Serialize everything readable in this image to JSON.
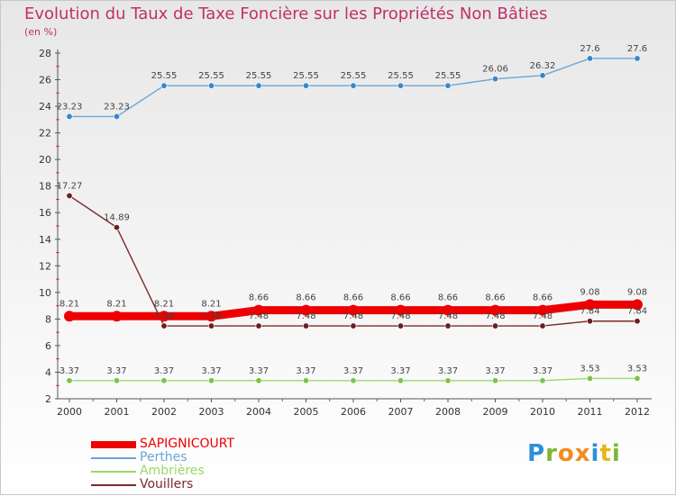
{
  "title": "Evolution du Taux de Taxe Foncière sur les Propriétés Non Bâties",
  "unit": "(en %)",
  "logo": "Proxiti",
  "chart_data": {
    "type": "line",
    "title": "Evolution du Taux de Taxe Foncière sur les Propriétés Non Bâties",
    "ylabel": "(en %)",
    "xlabel": "",
    "ylim": [
      2,
      28
    ],
    "yticks": [
      2,
      4,
      6,
      8,
      10,
      12,
      14,
      16,
      18,
      20,
      22,
      24,
      26,
      28
    ],
    "grid": false,
    "legend_position": "bottom-left",
    "x": [
      "2000",
      "2001",
      "2002",
      "2003",
      "2004",
      "2005",
      "2006",
      "2007",
      "2008",
      "2009",
      "2010",
      "2011",
      "2012"
    ],
    "series": [
      {
        "name": "Perthes",
        "color": "#6aa6d6",
        "marker": "#3a86c8",
        "values": [
          23.23,
          23.23,
          25.55,
          25.55,
          25.55,
          25.55,
          25.55,
          25.55,
          25.55,
          26.06,
          26.32,
          27.6,
          27.6
        ],
        "labels": [
          "23.23",
          "23.23",
          "25.55",
          "25.55",
          "25.55",
          "25.55",
          "25.55",
          "25.55",
          "25.55",
          "26.06",
          "26.32",
          "27.6",
          "27.6"
        ]
      },
      {
        "name": "Vouillers",
        "color": "#7a2a2a",
        "marker": "#6a1f1f",
        "values": [
          17.27,
          14.89,
          7.48,
          7.48,
          7.48,
          7.48,
          7.48,
          7.48,
          7.48,
          7.48,
          7.48,
          7.84,
          7.84
        ],
        "labels": [
          "17.27",
          "14.89",
          "7.48",
          "7.48",
          "7.48",
          "7.48",
          "7.48",
          "7.48",
          "7.48",
          "7.48",
          "7.48",
          "7.84",
          "7.84"
        ]
      },
      {
        "name": "SAPIGNICOURT",
        "color": "#ee0000",
        "marker": "#ee0000",
        "values": [
          8.21,
          8.21,
          8.21,
          8.21,
          8.66,
          8.66,
          8.66,
          8.66,
          8.66,
          8.66,
          8.66,
          9.08,
          9.08
        ],
        "labels": [
          "8.21",
          "8.21",
          "8.21",
          "8.21",
          "8.66",
          "8.66",
          "8.66",
          "8.66",
          "8.66",
          "8.66",
          "8.66",
          "9.08",
          "9.08"
        ]
      },
      {
        "name": "Ambrières",
        "color": "#99d96a",
        "marker": "#7cc24a",
        "values": [
          3.37,
          3.37,
          3.37,
          3.37,
          3.37,
          3.37,
          3.37,
          3.37,
          3.37,
          3.37,
          3.37,
          3.53,
          3.53
        ],
        "labels": [
          "3.37",
          "3.37",
          "3.37",
          "3.37",
          "3.37",
          "3.37",
          "3.37",
          "3.37",
          "3.37",
          "3.37",
          "3.37",
          "3.53",
          "3.53"
        ]
      }
    ],
    "legend": [
      {
        "name": "SAPIGNICOURT",
        "color": "#ee0000",
        "bold": true
      },
      {
        "name": "Perthes",
        "color": "#6aa6d6",
        "bold": false
      },
      {
        "name": "Ambrières",
        "color": "#99d96a",
        "bold": false
      },
      {
        "name": "Vouillers",
        "color": "#7a2a2a",
        "bold": false
      }
    ]
  }
}
